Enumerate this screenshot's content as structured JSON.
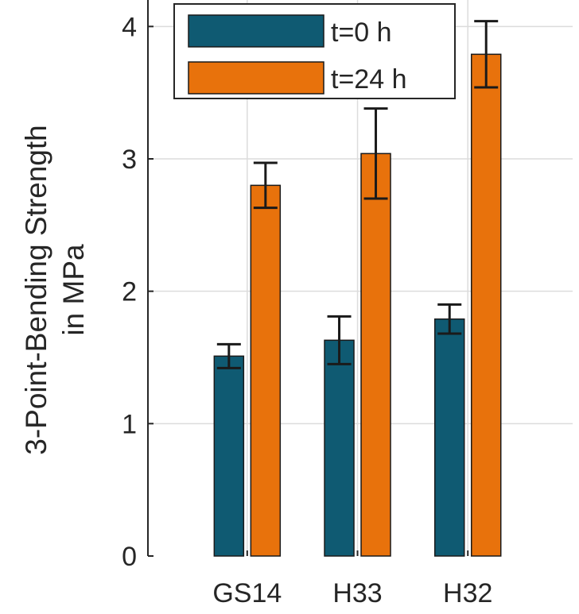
{
  "chart_data": {
    "type": "bar",
    "title": "",
    "xlabel": "",
    "ylabel": [
      "3-Point-Bending Strength",
      "in MPa"
    ],
    "ylim": [
      0,
      4.2
    ],
    "yticks": [
      0,
      1,
      2,
      3,
      4
    ],
    "ytick_labels": [
      "0",
      "1",
      "2",
      "3",
      "4"
    ],
    "categories": [
      "GS14",
      "H33",
      "H32"
    ],
    "grid": true,
    "legend_position": "top-left",
    "series": [
      {
        "name": "t=0 h",
        "color": "#0f5a72",
        "values": [
          1.51,
          1.63,
          1.79
        ],
        "errors": [
          0.09,
          0.18,
          0.11
        ]
      },
      {
        "name": "t=24 h",
        "color": "#e8720c",
        "values": [
          2.8,
          3.04,
          3.79
        ],
        "errors": [
          0.17,
          0.34,
          0.25
        ]
      }
    ]
  }
}
